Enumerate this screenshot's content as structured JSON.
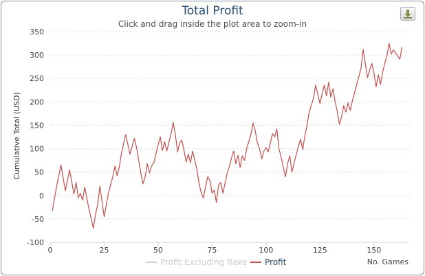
{
  "chart_data": {
    "type": "line",
    "title": "Total Profit",
    "subtitle": "Click and drag inside the plot area to zoom-in",
    "xlabel": "No. Games",
    "ylabel": "Cumulative Total (USD)",
    "xlim": [
      0,
      166
    ],
    "ylim": [
      -100,
      350
    ],
    "x_ticks": [
      "0",
      "25",
      "50",
      "75",
      "100",
      "125",
      "150"
    ],
    "y_ticks": [
      "350",
      "300",
      "250",
      "200",
      "150",
      "100",
      "50",
      "0",
      "-50",
      "-100"
    ],
    "grid": "horizontal-dotted",
    "legend_position": "bottom",
    "series": [
      {
        "name": "Profit Excluding Rake",
        "color": "#d0d0d0",
        "visible": false,
        "values": []
      },
      {
        "name": "Profit",
        "color": "#c0504d",
        "visible": true,
        "points": [
          [
            1,
            -33
          ],
          [
            3,
            20
          ],
          [
            5,
            65
          ],
          [
            7,
            10
          ],
          [
            9,
            55
          ],
          [
            11,
            3
          ],
          [
            12,
            28
          ],
          [
            13,
            -5
          ],
          [
            14,
            5
          ],
          [
            15,
            -10
          ],
          [
            16,
            18
          ],
          [
            18,
            -30
          ],
          [
            20,
            -70
          ],
          [
            21,
            -40
          ],
          [
            22,
            -20
          ],
          [
            23,
            20
          ],
          [
            25,
            -45
          ],
          [
            27,
            5
          ],
          [
            29,
            40
          ],
          [
            30,
            63
          ],
          [
            31,
            42
          ],
          [
            32,
            60
          ],
          [
            33,
            90
          ],
          [
            35,
            130
          ],
          [
            37,
            88
          ],
          [
            39,
            122
          ],
          [
            40,
            103
          ],
          [
            42,
            48
          ],
          [
            43,
            25
          ],
          [
            44,
            40
          ],
          [
            45,
            68
          ],
          [
            46,
            48
          ],
          [
            47,
            63
          ],
          [
            48,
            70
          ],
          [
            50,
            108
          ],
          [
            51,
            125
          ],
          [
            52,
            96
          ],
          [
            53,
            115
          ],
          [
            54,
            95
          ],
          [
            56,
            132
          ],
          [
            57,
            156
          ],
          [
            58,
            130
          ],
          [
            59,
            93
          ],
          [
            60,
            112
          ],
          [
            61,
            118
          ],
          [
            62,
            96
          ],
          [
            63,
            72
          ],
          [
            64,
            88
          ],
          [
            65,
            70
          ],
          [
            66,
            95
          ],
          [
            67,
            75
          ],
          [
            68,
            55
          ],
          [
            69,
            25
          ],
          [
            70,
            5
          ],
          [
            71,
            -5
          ],
          [
            72,
            20
          ],
          [
            73,
            40
          ],
          [
            74,
            32
          ],
          [
            75,
            5
          ],
          [
            76,
            12
          ],
          [
            77,
            -15
          ],
          [
            78,
            22
          ],
          [
            79,
            28
          ],
          [
            80,
            5
          ],
          [
            82,
            48
          ],
          [
            83,
            62
          ],
          [
            84,
            80
          ],
          [
            85,
            95
          ],
          [
            86,
            68
          ],
          [
            87,
            86
          ],
          [
            88,
            60
          ],
          [
            89,
            85
          ],
          [
            90,
            75
          ],
          [
            91,
            100
          ],
          [
            93,
            130
          ],
          [
            94,
            155
          ],
          [
            95,
            138
          ],
          [
            96,
            112
          ],
          [
            97,
            100
          ],
          [
            98,
            78
          ],
          [
            99,
            95
          ],
          [
            100,
            102
          ],
          [
            101,
            93
          ],
          [
            103,
            132
          ],
          [
            104,
            125
          ],
          [
            105,
            142
          ],
          [
            106,
            100
          ],
          [
            107,
            82
          ],
          [
            108,
            60
          ],
          [
            109,
            40
          ],
          [
            110,
            68
          ],
          [
            111,
            85
          ],
          [
            112,
            50
          ],
          [
            113,
            70
          ],
          [
            115,
            105
          ],
          [
            116,
            120
          ],
          [
            117,
            98
          ],
          [
            118,
            128
          ],
          [
            119,
            150
          ],
          [
            120,
            178
          ],
          [
            122,
            208
          ],
          [
            123,
            236
          ],
          [
            124,
            216
          ],
          [
            125,
            196
          ],
          [
            126,
            218
          ],
          [
            127,
            236
          ],
          [
            128,
            213
          ],
          [
            129,
            242
          ],
          [
            130,
            210
          ],
          [
            131,
            228
          ],
          [
            132,
            200
          ],
          [
            133,
            180
          ],
          [
            134,
            152
          ],
          [
            135,
            168
          ],
          [
            136,
            192
          ],
          [
            137,
            178
          ],
          [
            138,
            198
          ],
          [
            139,
            182
          ],
          [
            140,
            202
          ],
          [
            144,
            272
          ],
          [
            145,
            312
          ],
          [
            146,
            282
          ],
          [
            147,
            252
          ],
          [
            148,
            268
          ],
          [
            149,
            282
          ],
          [
            150,
            262
          ],
          [
            151,
            232
          ],
          [
            152,
            258
          ],
          [
            153,
            237
          ],
          [
            154,
            263
          ],
          [
            155,
            282
          ],
          [
            156,
            298
          ],
          [
            157,
            325
          ],
          [
            158,
            302
          ],
          [
            159,
            311
          ],
          [
            161,
            298
          ],
          [
            162,
            291
          ],
          [
            163,
            317
          ]
        ]
      }
    ]
  },
  "toolbar": {
    "export_icon": "download-icon"
  }
}
